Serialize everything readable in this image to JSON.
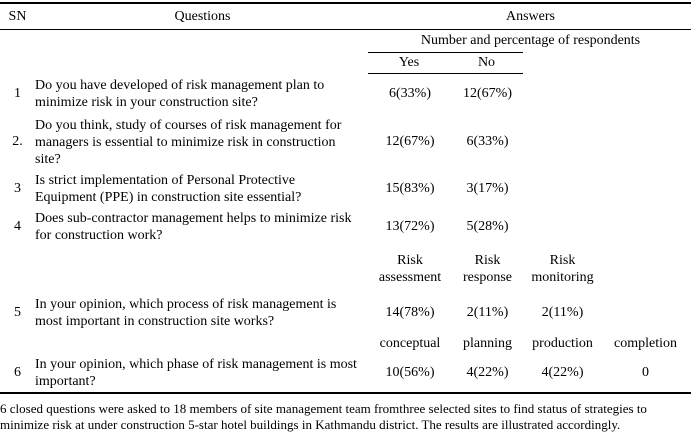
{
  "table": {
    "header": {
      "sn": "SN",
      "questions": "Questions",
      "answers": "Answers"
    },
    "answers_subheader": "Number and percentage of respondents",
    "yes_no": {
      "yes": "Yes",
      "no": "No"
    },
    "process_subheader": [
      "Risk\nassessment",
      "Risk\nresponse",
      "Risk\nmonitoring"
    ],
    "phase_subheader": [
      "conceptual",
      "planning",
      "production",
      "completion"
    ],
    "rows": [
      {
        "sn": "1",
        "question": "Do you have developed of risk management plan to\nminimize risk in your construction site?",
        "values": [
          "6(33%)",
          "12(67%)"
        ]
      },
      {
        "sn": "2.",
        "question": "Do you think, study of courses of risk management for\nmanagers is essential to minimize risk in construction\nsite?",
        "values": [
          "12(67%)",
          "6(33%)"
        ]
      },
      {
        "sn": "3",
        "question": "Is strict implementation of Personal Protective\nEquipment (PPE) in construction site essential?",
        "values": [
          "15(83%)",
          "3(17%)"
        ]
      },
      {
        "sn": "4",
        "question": "Does sub-contractor management helps to minimize risk\nfor construction work?",
        "values": [
          "13(72%)",
          "5(28%)"
        ]
      },
      {
        "sn": "5",
        "question": "In your opinion, which process of risk management is\nmost important in construction site works?",
        "values": [
          "14(78%)",
          "2(11%)",
          "2(11%)"
        ]
      },
      {
        "sn": "6",
        "question": "In your opinion, which phase of risk management is most\nimportant?",
        "values": [
          "10(56%)",
          "4(22%)",
          "4(22%)",
          "0"
        ]
      }
    ]
  },
  "footnote": "6 closed questions were asked to 18 members of site management team fromthree selected sites to find status of strategies to\nminimize risk at under construction 5-star hotel buildings in Kathmandu district. The results are illustrated accordingly."
}
